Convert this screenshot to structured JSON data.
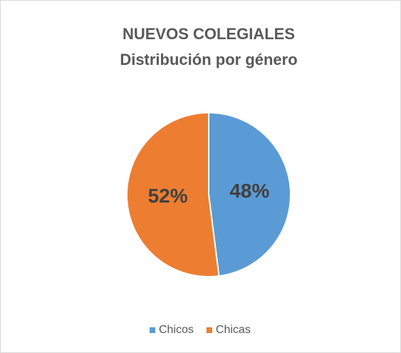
{
  "chart_data": {
    "type": "pie",
    "title": "NUEVOS COLEGIALES",
    "subtitle": "Distribución por género",
    "categories": [
      "Chicos",
      "Chicas"
    ],
    "values": [
      48,
      52
    ],
    "value_labels": [
      "48%",
      "52%"
    ],
    "colors": [
      "#5b9bd5",
      "#ed7d31"
    ],
    "legend": "bottom"
  }
}
